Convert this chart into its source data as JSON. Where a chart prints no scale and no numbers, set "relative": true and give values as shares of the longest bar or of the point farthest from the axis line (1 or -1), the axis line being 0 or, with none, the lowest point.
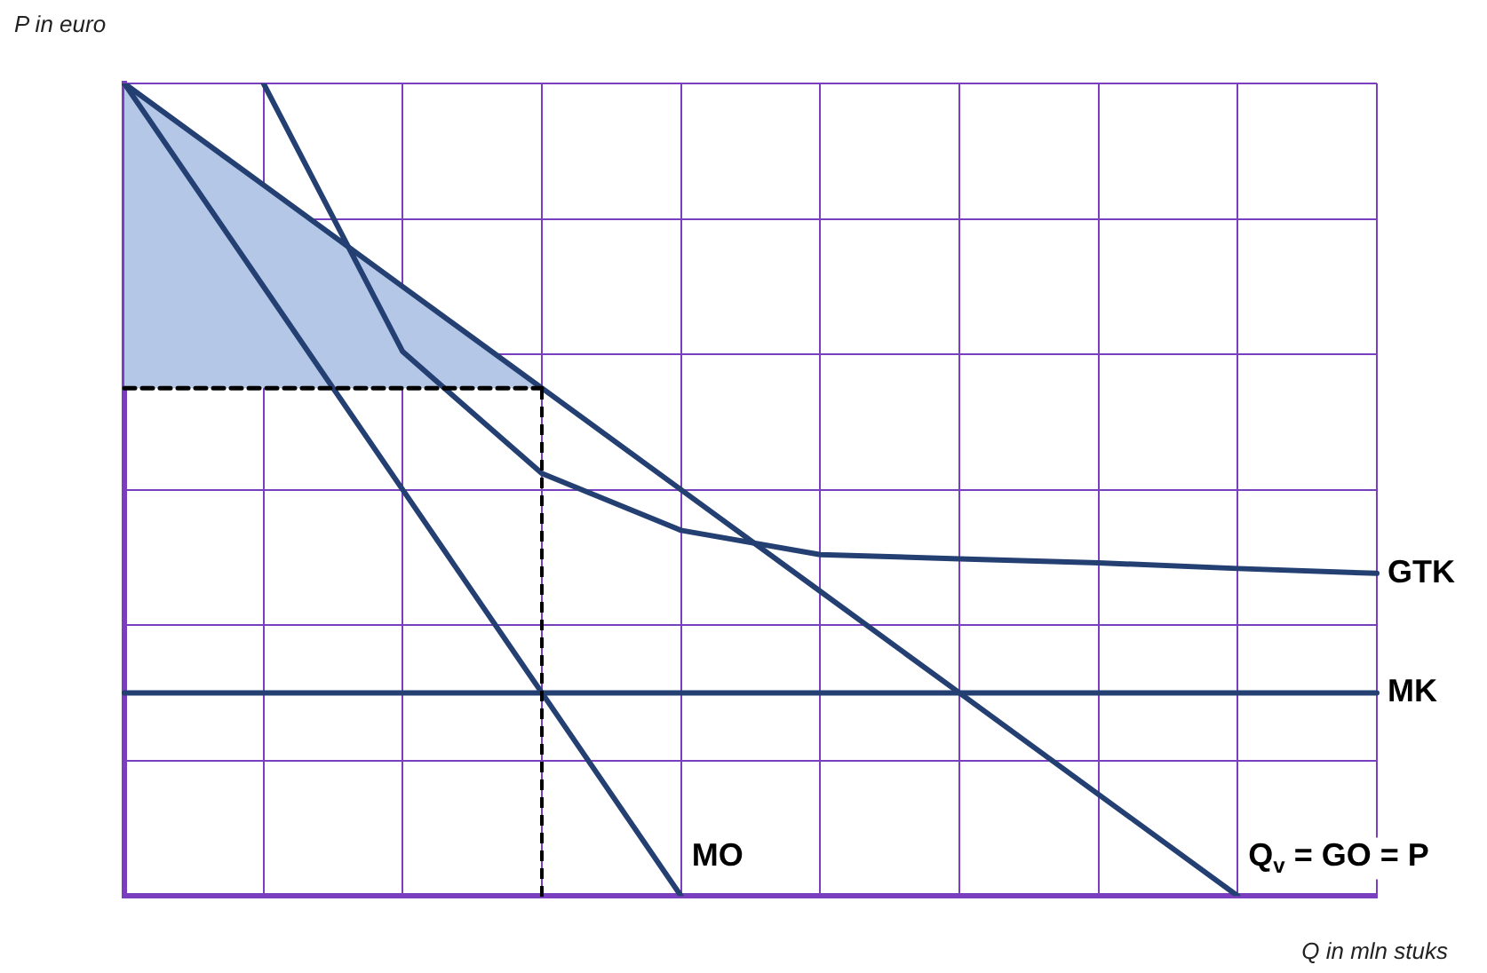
{
  "chart_data": {
    "type": "line",
    "relative": true,
    "xlabel": "Q in mln stuks",
    "ylabel": "P in euro",
    "categories": [
      null,
      null,
      null,
      null,
      null,
      null,
      null,
      null,
      null,
      null
    ],
    "grid": true,
    "legend": false,
    "marker": "none",
    "series": [
      {
        "type": "area",
        "color": "#b4c7e7",
        "values": [
          1,
          0.875,
          0.75,
          0.625,
          null,
          null,
          null,
          null,
          null,
          null
        ]
      },
      {
        "color": "#000000",
        "line_style": "dashed",
        "values": [
          0.625,
          0.625,
          0.625,
          0.625,
          null,
          null,
          null,
          null,
          null,
          null
        ]
      },
      {
        "name": "Q$_{v}$ = GO = P",
        "color": "#243f72",
        "values": [
          1,
          0.875,
          0.75,
          0.625,
          0.5,
          0.375,
          0.25,
          0.125,
          0,
          null
        ]
      },
      {
        "name": "MO",
        "color": "#243f72",
        "values": [
          1,
          0.75,
          0.5,
          0.25,
          0,
          null,
          null,
          null,
          null,
          null
        ]
      },
      {
        "name": "MK",
        "color": "#243f72",
        "values": [
          0.25,
          0.25,
          0.25,
          0.25,
          0.25,
          0.25,
          0.25,
          0.25,
          0.25,
          0.25
        ]
      },
      {
        "name": "GTK",
        "color": "#243f72",
        "values": [
          null,
          1,
          0.67,
          0.52,
          0.45,
          0.42,
          0.415,
          0.41,
          0.403,
          0.397
        ]
      }
    ]
  }
}
